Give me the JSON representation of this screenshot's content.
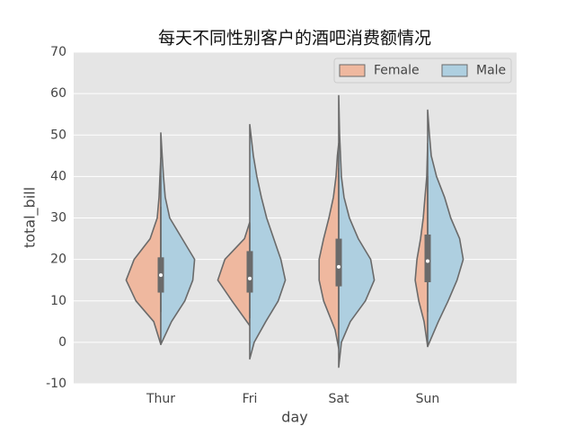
{
  "chart_data": {
    "type": "violin",
    "title": "每天不同性别客户的酒吧消费额情况",
    "x_label": "day",
    "y_label": "total_bill",
    "categories": [
      "Thur",
      "Fri",
      "Sat",
      "Sun"
    ],
    "ylim": [
      -10,
      70
    ],
    "yticks": [
      -10,
      0,
      10,
      20,
      30,
      40,
      50,
      60,
      70
    ],
    "grid": true,
    "legend": "upper right",
    "series": [
      {
        "name": "Female",
        "color": "#efb89f",
        "violins": [
          {
            "y": [
              -0.5,
              5,
              10,
              15,
              20,
              25,
              30,
              35,
              40,
              44.5
            ],
            "width": [
              0,
              0.08,
              0.28,
              0.39,
              0.3,
              0.12,
              0.04,
              0.02,
              0.01,
              0
            ]
          },
          {
            "y": [
              4,
              10,
              15,
              20,
              25,
              29
            ],
            "width": [
              0,
              0.2,
              0.36,
              0.28,
              0.06,
              0
            ]
          },
          {
            "y": [
              -1.5,
              3,
              10,
              15,
              20,
              25,
              30,
              35,
              40,
              45,
              48
            ],
            "width": [
              0,
              0.04,
              0.17,
              0.22,
              0.22,
              0.17,
              0.11,
              0.06,
              0.03,
              0.015,
              0
            ]
          },
          {
            "y": [
              -1,
              5,
              10,
              15,
              20,
              25,
              30,
              35,
              40,
              48
            ],
            "width": [
              0,
              0.04,
              0.1,
              0.14,
              0.12,
              0.08,
              0.05,
              0.03,
              0.01,
              0
            ]
          }
        ]
      },
      {
        "name": "Male",
        "color": "#aecfe0",
        "violins": [
          {
            "y": [
              -0.5,
              5,
              10,
              15,
              20,
              25,
              30,
              35,
              40,
              45,
              50.5
            ],
            "width": [
              0,
              0.12,
              0.27,
              0.36,
              0.38,
              0.24,
              0.1,
              0.05,
              0.03,
              0.015,
              0
            ]
          },
          {
            "y": [
              -4,
              0,
              5,
              10,
              15,
              20,
              25,
              30,
              35,
              40,
              45,
              52.5
            ],
            "width": [
              0,
              0.05,
              0.18,
              0.32,
              0.4,
              0.35,
              0.27,
              0.19,
              0.13,
              0.08,
              0.04,
              0
            ]
          },
          {
            "y": [
              -6,
              0,
              5,
              10,
              15,
              20,
              25,
              30,
              35,
              40,
              45,
              50,
              59.5
            ],
            "width": [
              0,
              0.03,
              0.13,
              0.3,
              0.4,
              0.36,
              0.22,
              0.12,
              0.06,
              0.03,
              0.02,
              0.01,
              0
            ]
          },
          {
            "y": [
              -1,
              5,
              10,
              15,
              20,
              25,
              30,
              35,
              40,
              45,
              50,
              56
            ],
            "width": [
              0,
              0.12,
              0.23,
              0.33,
              0.4,
              0.36,
              0.26,
              0.19,
              0.1,
              0.04,
              0.02,
              0
            ]
          }
        ]
      }
    ],
    "boxes": {
      "whislo": [
        7.3,
        5.8,
        3.1,
        7.3
      ],
      "q1": [
        12,
        12,
        13.5,
        14.5
      ],
      "median": [
        16.2,
        15.4,
        18.2,
        19.6
      ],
      "q3": [
        20.5,
        22,
        25,
        26
      ],
      "whishi": [
        32.7,
        28.9,
        42,
        40
      ]
    }
  }
}
